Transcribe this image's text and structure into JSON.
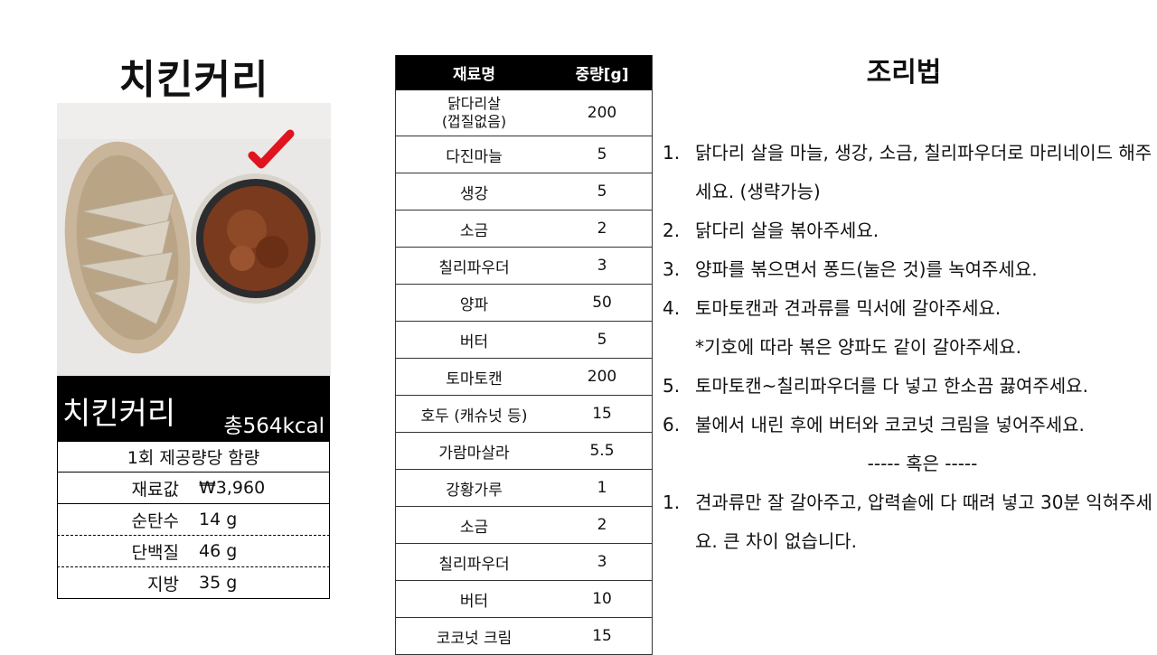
{
  "dish": {
    "title": "치킨커리",
    "name": "치킨커리",
    "kcal": "총564kcal",
    "per_serving": "1회 제공량당 함량",
    "nutrition": [
      {
        "label": "재료값",
        "value": "₩3,960"
      },
      {
        "label": "순탄수",
        "value": "14 g"
      },
      {
        "label": "단백질",
        "value": "46 g"
      },
      {
        "label": "지방",
        "value": "35 g"
      }
    ]
  },
  "ingredients": {
    "headers": [
      "재료명",
      "중량[g]"
    ],
    "rows": [
      {
        "name": "닭다리살\n(껍질없음)",
        "weight": "200"
      },
      {
        "name": "다진마늘",
        "weight": "5"
      },
      {
        "name": "생강",
        "weight": "5"
      },
      {
        "name": "소금",
        "weight": "2"
      },
      {
        "name": "칠리파우더",
        "weight": "3"
      },
      {
        "name": "양파",
        "weight": "50"
      },
      {
        "name": "버터",
        "weight": "5"
      },
      {
        "name": "토마토캔",
        "weight": "200"
      },
      {
        "name": "호두 (캐슈넛 등)",
        "weight": "15"
      },
      {
        "name": "가람마살라",
        "weight": "5.5"
      },
      {
        "name": "강황가루",
        "weight": "1"
      },
      {
        "name": "소금",
        "weight": "2"
      },
      {
        "name": "칠리파우더",
        "weight": "3"
      },
      {
        "name": "버터",
        "weight": "10"
      },
      {
        "name": "코코넛 크림",
        "weight": "15"
      }
    ]
  },
  "recipe": {
    "title": "조리법",
    "steps": [
      {
        "num": "1.",
        "text": "닭다리 살을 마늘, 생강, 소금, 칠리파우더로 마리네이드 해주세요. (생략가능)"
      },
      {
        "num": "2.",
        "text": "닭다리 살을 볶아주세요."
      },
      {
        "num": "3.",
        "text": "양파를 볶으면서 퐁드(눌은 것)를 녹여주세요."
      },
      {
        "num": "4.",
        "text": "토마토캔과 견과류를 믹서에 갈아주세요."
      },
      {
        "num": "5.",
        "text": "토마토캔~칠리파우더를 다 넣고 한소끔 끓여주세요."
      },
      {
        "num": "6.",
        "text": "불에서 내린 후에 버터와 코코넛 크림을 넣어주세요."
      }
    ],
    "step4_note": "*기호에 따라 볶은 양파도 같이 갈아주세요.",
    "divider": "----- 혹은 -----",
    "alt_steps": [
      {
        "num": "1.",
        "text": "견과류만 잘 갈아주고, 압력솥에 다 때려 넣고 30분 익혀주세요. 큰 차이 없습니다."
      }
    ]
  },
  "colors": {
    "accent_check": "#e0141e",
    "header_bg": "#000000"
  }
}
